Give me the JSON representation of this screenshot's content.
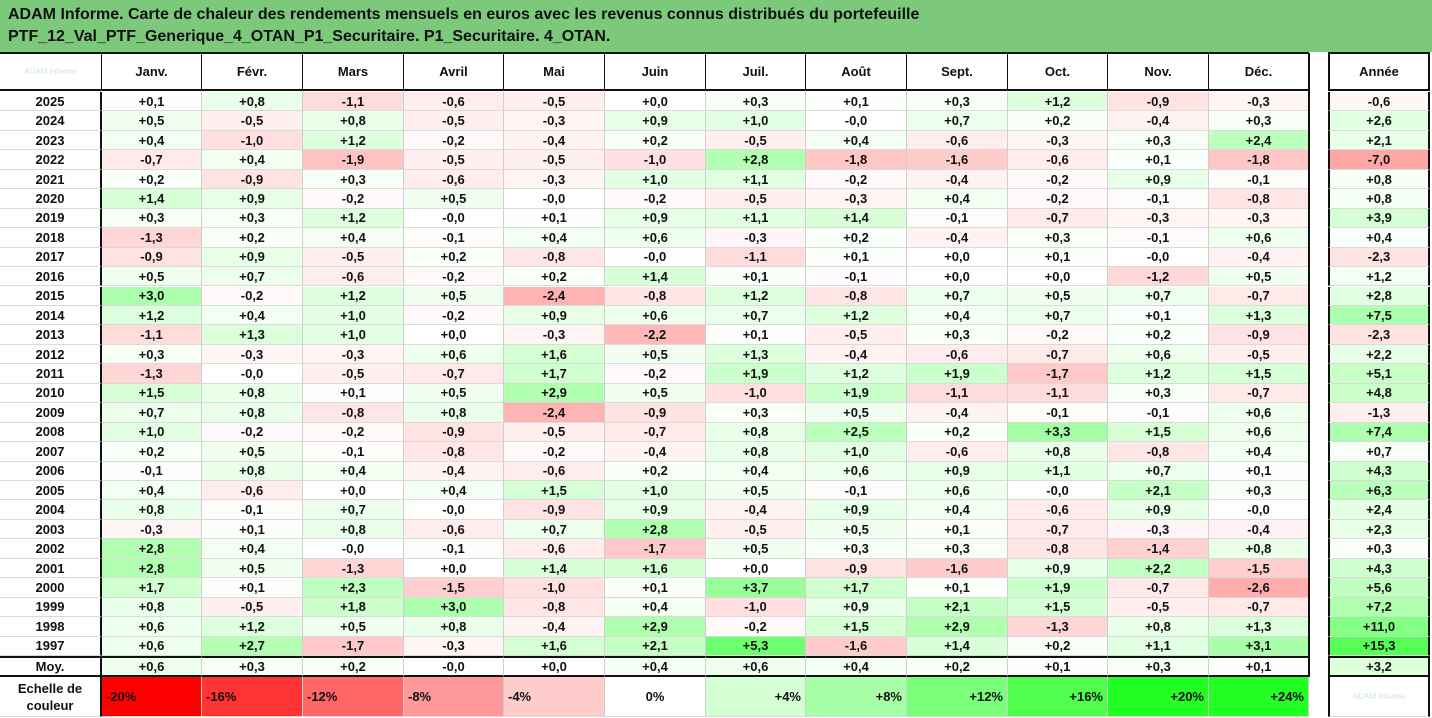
{
  "title_line1": "ADAM Informe. Carte de chaleur des rendements mensuels en euros avec les revenus connus distribués du portefeuille",
  "title_line2": "PTF_12_Val_PTF_Generique_4_OTAN_P1_Securitaire. P1_Securitaire. 4_OTAN.",
  "watermark_left": "ADAM Informe",
  "watermark_right": "ADAM Informe",
  "colors": {
    "title_band": "#7cc97c",
    "negative": "#ff0000",
    "positive": "#22ff22",
    "neutral": "#ffffff"
  },
  "chart_data": {
    "type": "heatmap",
    "months": [
      "Janv.",
      "Févr.",
      "Mars",
      "Avril",
      "Mai",
      "Juin",
      "Juil.",
      "Août",
      "Sept.",
      "Oct.",
      "Nov.",
      "Déc."
    ],
    "year_header": "Année",
    "years": [
      "2025",
      "2024",
      "2023",
      "2022",
      "2021",
      "2020",
      "2019",
      "2018",
      "2017",
      "2016",
      "2015",
      "2014",
      "2013",
      "2012",
      "2011",
      "2010",
      "2009",
      "2008",
      "2007",
      "2006",
      "2005",
      "2004",
      "2003",
      "2002",
      "2001",
      "2000",
      "1999",
      "1998",
      "1997"
    ],
    "values": [
      [
        "+0,1",
        "+0,8",
        "-1,1",
        "-0,6",
        "-0,5",
        "+0,0",
        "+0,3",
        "+0,1",
        "+0,3",
        "+1,2",
        "-0,9",
        "-0,3"
      ],
      [
        "+0,5",
        "-0,5",
        "+0,8",
        "-0,5",
        "-0,3",
        "+0,9",
        "+1,0",
        "-0,0",
        "+0,7",
        "+0,2",
        "-0,4",
        "+0,3"
      ],
      [
        "+0,4",
        "-1,0",
        "+1,2",
        "-0,2",
        "-0,4",
        "+0,2",
        "-0,5",
        "+0,4",
        "-0,6",
        "-0,3",
        "+0,3",
        "+2,4"
      ],
      [
        "-0,7",
        "+0,4",
        "-1,9",
        "-0,5",
        "-0,5",
        "-1,0",
        "+2,8",
        "-1,8",
        "-1,6",
        "-0,6",
        "+0,1",
        "-1,8"
      ],
      [
        "+0,2",
        "-0,9",
        "+0,3",
        "-0,6",
        "-0,3",
        "+1,0",
        "+1,1",
        "-0,2",
        "-0,4",
        "-0,2",
        "+0,9",
        "-0,1"
      ],
      [
        "+1,4",
        "+0,9",
        "-0,2",
        "+0,5",
        "-0,0",
        "-0,2",
        "-0,5",
        "-0,3",
        "+0,4",
        "-0,2",
        "-0,1",
        "-0,8"
      ],
      [
        "+0,3",
        "+0,3",
        "+1,2",
        "-0,0",
        "+0,1",
        "+0,9",
        "+1,1",
        "+1,4",
        "-0,1",
        "-0,7",
        "-0,3",
        "-0,3"
      ],
      [
        "-1,3",
        "+0,2",
        "+0,4",
        "-0,1",
        "+0,4",
        "+0,6",
        "-0,3",
        "+0,2",
        "-0,4",
        "+0,3",
        "-0,1",
        "+0,6"
      ],
      [
        "-0,9",
        "+0,9",
        "-0,5",
        "+0,2",
        "-0,8",
        "-0,0",
        "-1,1",
        "+0,1",
        "+0,0",
        "+0,1",
        "-0,0",
        "-0,4"
      ],
      [
        "+0,5",
        "+0,7",
        "-0,6",
        "-0,2",
        "+0,2",
        "+1,4",
        "+0,1",
        "-0,1",
        "+0,0",
        "+0,0",
        "-1,2",
        "+0,5"
      ],
      [
        "+3,0",
        "-0,2",
        "+1,2",
        "+0,5",
        "-2,4",
        "-0,8",
        "+1,2",
        "-0,8",
        "+0,7",
        "+0,5",
        "+0,7",
        "-0,7"
      ],
      [
        "+1,2",
        "+0,4",
        "+1,0",
        "-0,2",
        "+0,9",
        "+0,6",
        "+0,7",
        "+1,2",
        "+0,4",
        "+0,7",
        "+0,1",
        "+1,3"
      ],
      [
        "-1,1",
        "+1,3",
        "+1,0",
        "+0,0",
        "-0,3",
        "-2,2",
        "+0,1",
        "-0,5",
        "+0,3",
        "-0,2",
        "+0,2",
        "-0,9"
      ],
      [
        "+0,3",
        "-0,3",
        "-0,3",
        "+0,6",
        "+1,6",
        "+0,5",
        "+1,3",
        "-0,4",
        "-0,6",
        "-0,7",
        "+0,6",
        "-0,5"
      ],
      [
        "-1,3",
        "-0,0",
        "-0,5",
        "-0,7",
        "+1,7",
        "-0,2",
        "+1,9",
        "+1,2",
        "+1,9",
        "-1,7",
        "+1,2",
        "+1,5"
      ],
      [
        "+1,5",
        "+0,8",
        "+0,1",
        "+0,5",
        "+2,9",
        "+0,5",
        "-1,0",
        "+1,9",
        "-1,1",
        "-1,1",
        "+0,3",
        "-0,7"
      ],
      [
        "+0,7",
        "+0,8",
        "-0,8",
        "+0,8",
        "-2,4",
        "-0,9",
        "+0,3",
        "+0,5",
        "-0,4",
        "-0,1",
        "-0,1",
        "+0,6"
      ],
      [
        "+1,0",
        "-0,2",
        "-0,2",
        "-0,9",
        "-0,5",
        "-0,7",
        "+0,8",
        "+2,5",
        "+0,2",
        "+3,3",
        "+1,5",
        "+0,6"
      ],
      [
        "+0,2",
        "+0,5",
        "-0,1",
        "-0,8",
        "-0,2",
        "-0,4",
        "+0,8",
        "+1,0",
        "-0,6",
        "+0,8",
        "-0,8",
        "+0,4"
      ],
      [
        "-0,1",
        "+0,8",
        "+0,4",
        "-0,4",
        "-0,6",
        "+0,2",
        "+0,4",
        "+0,6",
        "+0,9",
        "+1,1",
        "+0,7",
        "+0,1"
      ],
      [
        "+0,4",
        "-0,6",
        "+0,0",
        "+0,4",
        "+1,5",
        "+1,0",
        "+0,5",
        "-0,1",
        "+0,6",
        "-0,0",
        "+2,1",
        "+0,3"
      ],
      [
        "+0,8",
        "-0,1",
        "+0,7",
        "-0,0",
        "-0,9",
        "+0,9",
        "-0,4",
        "+0,9",
        "+0,4",
        "-0,6",
        "+0,9",
        "-0,0"
      ],
      [
        "-0,3",
        "+0,1",
        "+0,8",
        "-0,6",
        "+0,7",
        "+2,8",
        "-0,5",
        "+0,5",
        "+0,1",
        "-0,7",
        "-0,3",
        "-0,4"
      ],
      [
        "+2,8",
        "+0,4",
        "-0,0",
        "-0,1",
        "-0,6",
        "-1,7",
        "+0,5",
        "+0,3",
        "+0,3",
        "-0,8",
        "-1,4",
        "+0,8"
      ],
      [
        "+2,8",
        "+0,5",
        "-1,3",
        "+0,0",
        "+1,4",
        "+1,6",
        "+0,0",
        "-0,9",
        "-1,6",
        "+0,9",
        "+2,2",
        "-1,5"
      ],
      [
        "+1,7",
        "+0,1",
        "+2,3",
        "-1,5",
        "-1,0",
        "+0,1",
        "+3,7",
        "+1,7",
        "+0,1",
        "+1,9",
        "-0,7",
        "-2,6"
      ],
      [
        "+0,8",
        "-0,5",
        "+1,8",
        "+3,0",
        "-0,8",
        "+0,4",
        "-1,0",
        "+0,9",
        "+2,1",
        "+1,5",
        "-0,5",
        "-0,7"
      ],
      [
        "+0,6",
        "+1,2",
        "+0,5",
        "+0,8",
        "-0,4",
        "+2,9",
        "-0,2",
        "+1,5",
        "+2,9",
        "-1,3",
        "+0,8",
        "+1,3"
      ],
      [
        "+0,6",
        "+2,7",
        "-1,7",
        "-0,3",
        "+1,6",
        "+2,1",
        "+5,3",
        "-1,6",
        "+1,4",
        "+0,2",
        "+1,1",
        "+3,1"
      ]
    ],
    "annual": [
      "-0,6",
      "+2,6",
      "+2,1",
      "-7,0",
      "+0,8",
      "+0,8",
      "+3,9",
      "+0,4",
      "-2,3",
      "+1,2",
      "+2,8",
      "+7,5",
      "-2,3",
      "+2,2",
      "+5,1",
      "+4,8",
      "-1,3",
      "+7,4",
      "+0,7",
      "+4,3",
      "+6,3",
      "+2,4",
      "+2,3",
      "+0,3",
      "+4,3",
      "+5,6",
      "+7,2",
      "+11,0",
      "+15,3"
    ],
    "avg_label": "Moy.",
    "averages": [
      "+0,6",
      "+0,3",
      "+0,2",
      "-0,0",
      "+0,0",
      "+0,4",
      "+0,6",
      "+0,4",
      "+0,2",
      "+0,1",
      "+0,3",
      "+0,1"
    ],
    "avg_annual": "+3,2",
    "scale_label_1": "Echelle de",
    "scale_label_2": "couleur",
    "scale": [
      "-20%",
      "-16%",
      "-12%",
      "-8%",
      "-4%",
      "0%",
      "+4%",
      "+8%",
      "+12%",
      "+16%",
      "+20%",
      "+24%"
    ],
    "scale_values": [
      -20,
      -16,
      -12,
      -8,
      -4,
      0,
      4,
      8,
      12,
      16,
      20,
      24
    ]
  }
}
